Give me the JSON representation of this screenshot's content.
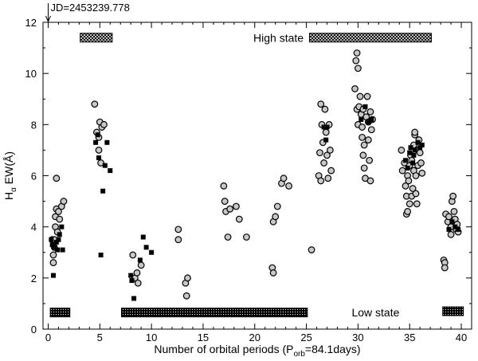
{
  "chart_data": {
    "type": "scatter",
    "title": "",
    "top_annotation": "JD=2453239.778",
    "xlabel": {
      "main": "Number of orbital periods (P",
      "sub": "orb",
      "tail": "=84.1days)"
    },
    "ylabel": {
      "main": "H",
      "sub": "α",
      "tail": " EW(Å)"
    },
    "xlim": [
      -0.5,
      41
    ],
    "ylim": [
      0,
      12
    ],
    "x_ticks": [
      0,
      5,
      10,
      15,
      20,
      25,
      30,
      35,
      40
    ],
    "y_ticks": [
      0,
      2,
      4,
      6,
      8,
      10,
      12
    ],
    "x_tick_labels": [
      "0",
      "5",
      "10",
      "15",
      "20",
      "25",
      "30",
      "35",
      "40"
    ],
    "y_tick_labels": [
      "0",
      "2",
      "4",
      "6",
      "8",
      "10",
      "12"
    ],
    "grid": false,
    "state_labels": {
      "high": "High state",
      "low": "Low state"
    },
    "high_state_bars": [
      {
        "x0": 3.1,
        "x1": 6.2,
        "y": 11.4,
        "label": "High state"
      },
      {
        "x0": 25.3,
        "x1": 37.1,
        "y": 11.4,
        "label": "High state"
      }
    ],
    "low_state_bars": [
      {
        "x0": 0.2,
        "x1": 2.1,
        "y": 0.65,
        "label": "Low state"
      },
      {
        "x0": 7.1,
        "x1": 25.1,
        "y": 0.65,
        "label": "Low state"
      },
      {
        "x0": 38.2,
        "x1": 40.2,
        "y": 0.7,
        "label": "Low state"
      }
    ],
    "series": [
      {
        "marker": "open-circle",
        "points": [
          [
            0.4,
            3.5
          ],
          [
            0.5,
            2.9
          ],
          [
            0.5,
            2.6
          ],
          [
            0.6,
            3.2
          ],
          [
            0.6,
            3.5
          ],
          [
            0.7,
            4.0
          ],
          [
            0.7,
            4.4
          ],
          [
            0.8,
            4.7
          ],
          [
            0.8,
            5.9
          ],
          [
            0.9,
            3.8
          ],
          [
            1.0,
            4.6
          ],
          [
            1.1,
            4.3
          ],
          [
            1.3,
            4.8
          ],
          [
            1.5,
            5.0
          ],
          [
            4.5,
            8.8
          ],
          [
            4.7,
            7.7
          ],
          [
            4.9,
            7.5
          ],
          [
            4.9,
            7.0
          ],
          [
            5.0,
            8.1
          ],
          [
            5.1,
            6.5
          ],
          [
            5.2,
            7.9
          ],
          [
            5.4,
            8.0
          ],
          [
            8.2,
            2.9
          ],
          [
            8.4,
            2.0
          ],
          [
            8.6,
            2.2
          ],
          [
            8.7,
            1.8
          ],
          [
            9.0,
            2.5
          ],
          [
            12.6,
            3.9
          ],
          [
            12.6,
            3.5
          ],
          [
            13.3,
            1.8
          ],
          [
            13.4,
            1.3
          ],
          [
            13.5,
            2.0
          ],
          [
            17.0,
            5.6
          ],
          [
            17.1,
            5.0
          ],
          [
            17.2,
            4.6
          ],
          [
            17.4,
            3.6
          ],
          [
            17.6,
            4.7
          ],
          [
            18.2,
            4.8
          ],
          [
            18.5,
            4.3
          ],
          [
            19.2,
            3.6
          ],
          [
            21.7,
            2.4
          ],
          [
            21.8,
            2.2
          ],
          [
            21.8,
            4.2
          ],
          [
            22.0,
            4.4
          ],
          [
            22.2,
            4.8
          ],
          [
            22.6,
            5.7
          ],
          [
            22.8,
            5.9
          ],
          [
            23.3,
            5.6
          ],
          [
            25.5,
            3.1
          ],
          [
            26.2,
            6.0
          ],
          [
            26.3,
            6.9
          ],
          [
            26.4,
            5.8
          ],
          [
            26.4,
            8.8
          ],
          [
            26.5,
            8.0
          ],
          [
            26.6,
            7.3
          ],
          [
            26.7,
            6.5
          ],
          [
            26.8,
            8.6
          ],
          [
            26.9,
            7.7
          ],
          [
            27.0,
            6.8
          ],
          [
            27.1,
            5.9
          ],
          [
            27.2,
            8.0
          ],
          [
            27.3,
            7.0
          ],
          [
            27.4,
            6.2
          ],
          [
            29.7,
            9.4
          ],
          [
            29.8,
            10.5
          ],
          [
            29.9,
            10.8
          ],
          [
            30.0,
            10.2
          ],
          [
            29.9,
            8.6
          ],
          [
            30.0,
            8.0
          ],
          [
            30.1,
            8.7
          ],
          [
            30.2,
            9.1
          ],
          [
            30.3,
            8.4
          ],
          [
            30.4,
            7.9
          ],
          [
            30.5,
            8.6
          ],
          [
            30.4,
            7.5
          ],
          [
            30.5,
            6.8
          ],
          [
            30.6,
            6.3
          ],
          [
            30.6,
            7.2
          ],
          [
            30.7,
            5.9
          ],
          [
            30.8,
            8.3
          ],
          [
            30.9,
            9.1
          ],
          [
            31.0,
            8.1
          ],
          [
            31.0,
            7.4
          ],
          [
            31.1,
            6.6
          ],
          [
            31.2,
            8.5
          ],
          [
            31.3,
            7.8
          ],
          [
            31.2,
            5.8
          ],
          [
            31.4,
            8.2
          ],
          [
            34.2,
            7.0
          ],
          [
            34.3,
            6.2
          ],
          [
            34.5,
            6.5
          ],
          [
            34.6,
            5.6
          ],
          [
            34.7,
            5.2
          ],
          [
            34.7,
            4.5
          ],
          [
            34.8,
            4.6
          ],
          [
            34.8,
            6.0
          ],
          [
            34.9,
            5.8
          ],
          [
            35.0,
            6.4
          ],
          [
            35.0,
            4.9
          ],
          [
            35.1,
            6.8
          ],
          [
            35.2,
            5.2
          ],
          [
            35.2,
            6.6
          ],
          [
            35.3,
            5.5
          ],
          [
            35.4,
            7.2
          ],
          [
            35.4,
            6.2
          ],
          [
            35.5,
            7.6
          ],
          [
            35.5,
            7.7
          ],
          [
            35.6,
            5.3
          ],
          [
            35.6,
            6.0
          ],
          [
            35.7,
            4.9
          ],
          [
            35.8,
            7.0
          ],
          [
            35.8,
            6.4
          ],
          [
            35.9,
            7.4
          ],
          [
            36.0,
            6.9
          ],
          [
            36.1,
            6.5
          ],
          [
            36.2,
            6.1
          ],
          [
            38.3,
            2.7
          ],
          [
            38.4,
            2.6
          ],
          [
            38.4,
            2.4
          ],
          [
            38.5,
            4.5
          ],
          [
            38.7,
            4.2
          ],
          [
            38.8,
            4.4
          ],
          [
            39.0,
            3.7
          ],
          [
            39.0,
            4.0
          ],
          [
            39.1,
            5.0
          ],
          [
            39.2,
            5.2
          ],
          [
            39.3,
            4.6
          ],
          [
            39.4,
            4.3
          ],
          [
            39.5,
            3.9
          ],
          [
            39.6,
            4.1
          ],
          [
            39.7,
            3.8
          ]
        ]
      },
      {
        "marker": "filled-square",
        "points": [
          [
            0.3,
            3.5
          ],
          [
            0.4,
            3.3
          ],
          [
            0.5,
            2.1
          ],
          [
            0.6,
            3.2
          ],
          [
            0.8,
            3.4
          ],
          [
            0.9,
            3.1
          ],
          [
            1.0,
            3.5
          ],
          [
            1.1,
            3.7
          ],
          [
            1.3,
            4.0
          ],
          [
            1.4,
            3.1
          ],
          [
            4.6,
            7.3
          ],
          [
            4.8,
            7.6
          ],
          [
            4.9,
            6.7
          ],
          [
            5.1,
            2.9
          ],
          [
            5.3,
            5.4
          ],
          [
            5.5,
            6.4
          ],
          [
            5.7,
            7.3
          ],
          [
            6.0,
            6.2
          ],
          [
            8.0,
            2.1
          ],
          [
            8.1,
            1.9
          ],
          [
            8.3,
            1.2
          ],
          [
            8.9,
            2.7
          ],
          [
            9.2,
            3.6
          ],
          [
            9.5,
            3.2
          ],
          [
            10.0,
            3.0
          ],
          [
            26.7,
            7.9
          ],
          [
            26.9,
            7.4
          ],
          [
            27.0,
            7.9
          ],
          [
            30.3,
            8.2
          ],
          [
            30.7,
            8.7
          ],
          [
            31.0,
            8.1
          ],
          [
            31.3,
            8.2
          ],
          [
            34.6,
            6.6
          ],
          [
            34.8,
            6.3
          ],
          [
            35.0,
            6.9
          ],
          [
            35.1,
            7.1
          ],
          [
            35.3,
            6.5
          ],
          [
            35.4,
            6.8
          ],
          [
            35.5,
            7.0
          ],
          [
            35.8,
            7.3
          ],
          [
            36.0,
            7.1
          ],
          [
            36.2,
            7.2
          ],
          [
            38.8,
            3.9
          ],
          [
            39.1,
            4.2
          ],
          [
            39.4,
            4.0
          ],
          [
            39.7,
            3.9
          ]
        ]
      }
    ]
  }
}
